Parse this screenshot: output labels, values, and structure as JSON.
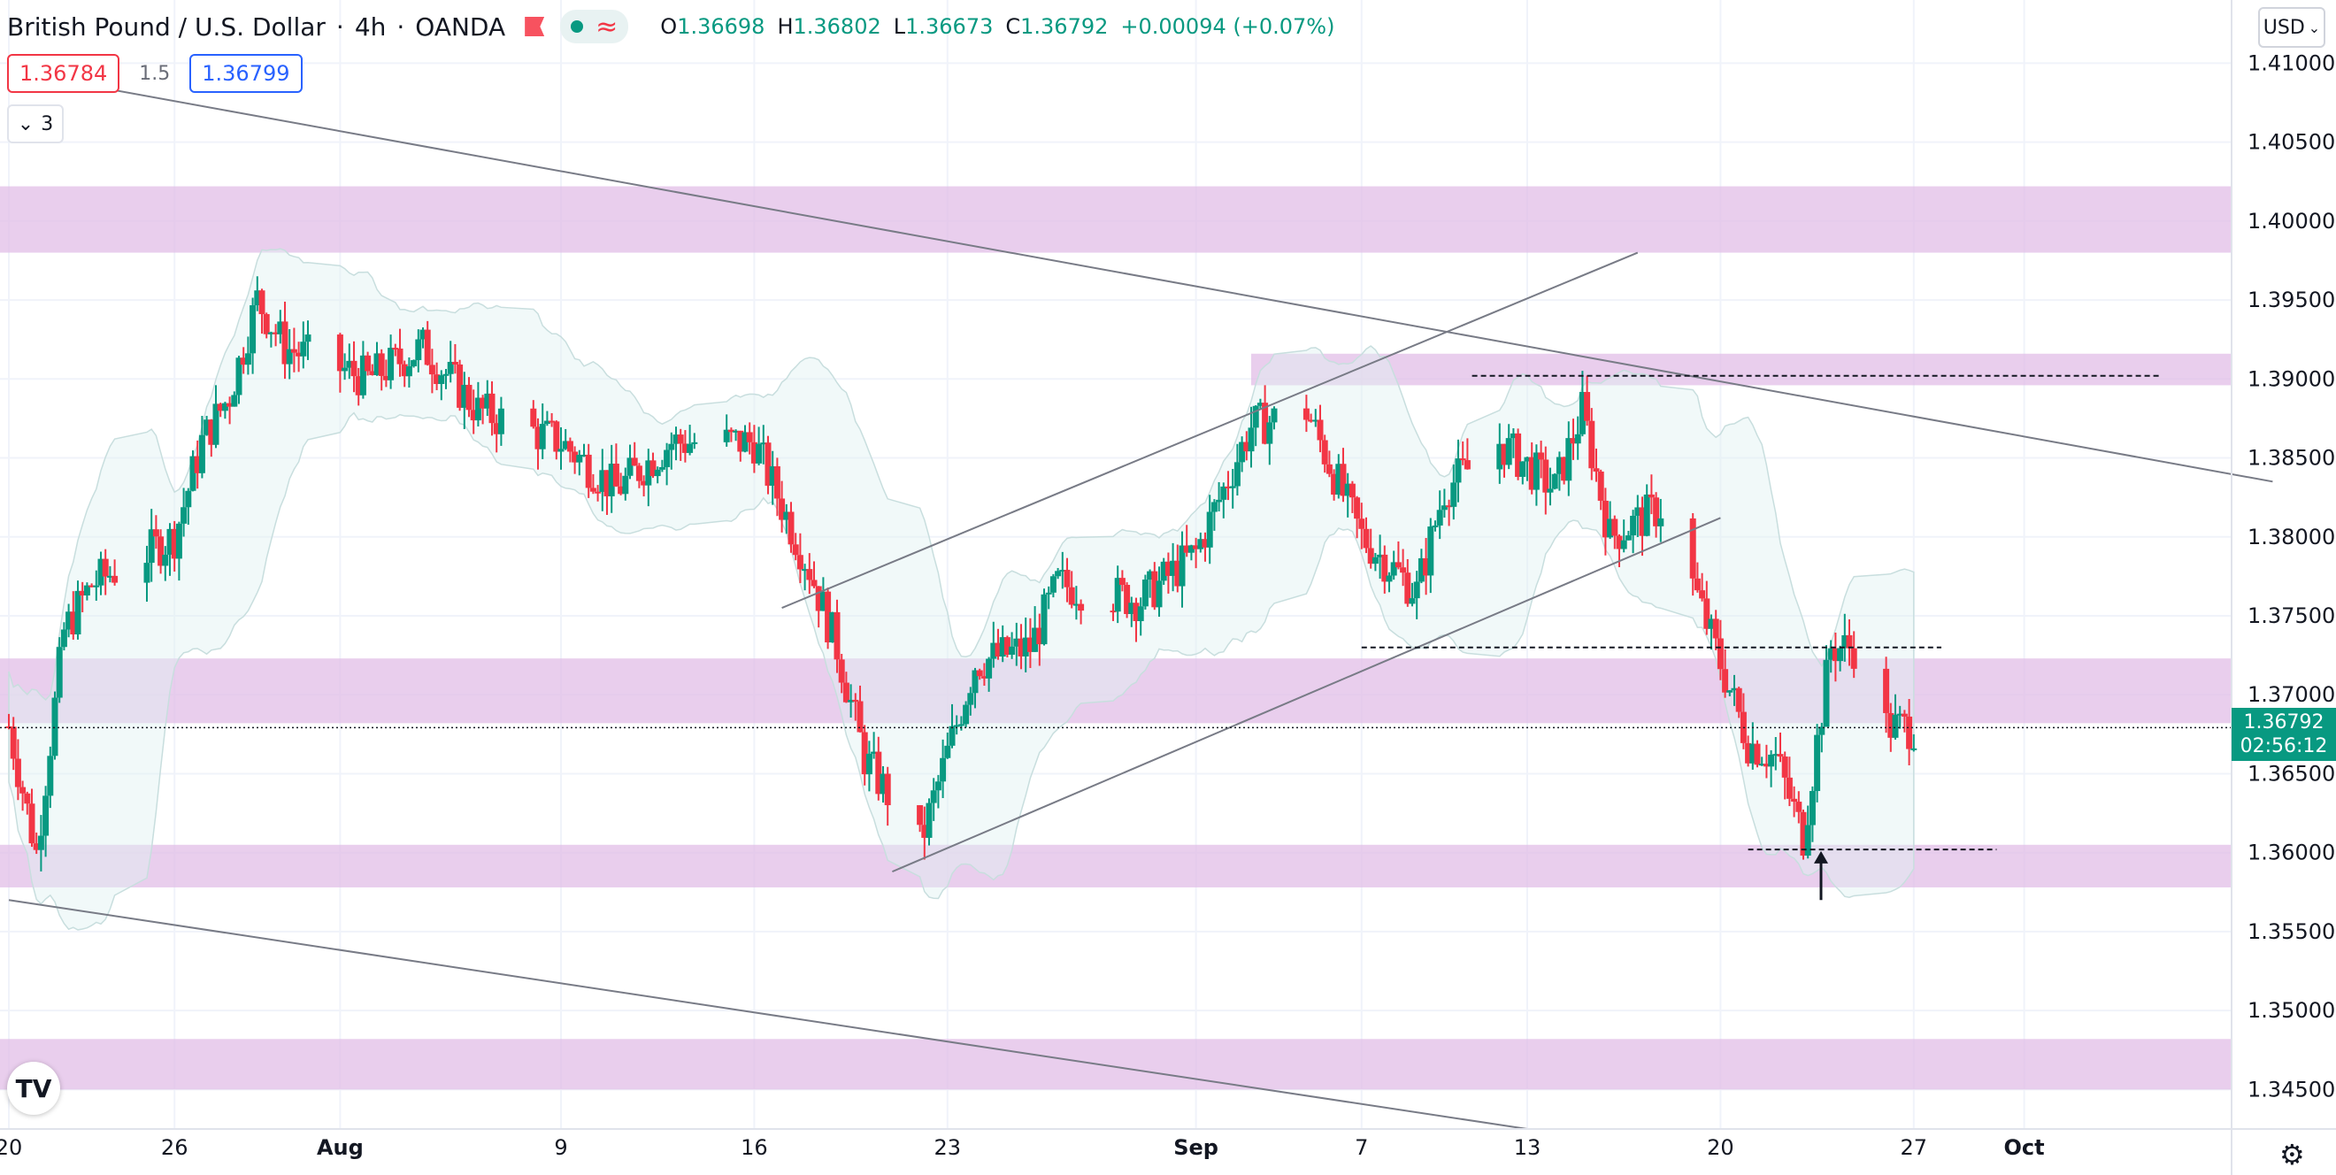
{
  "legend": {
    "symbol": "British Pound / U.S. Dollar",
    "interval": "4h",
    "exchange": "OANDA",
    "open_label": "O",
    "open": "1.36698",
    "high_label": "H",
    "high": "1.36802",
    "low_label": "L",
    "low": "1.36673",
    "close_label": "C",
    "close": "1.36792",
    "change": "+0.00094 (+0.07%)"
  },
  "trading": {
    "sell_price": "1.36784",
    "spread": "1.5",
    "buy_price": "1.36799"
  },
  "indicators_count": "3",
  "currency": "USD",
  "last_price": {
    "value": "1.36792",
    "countdown": "02:56:12"
  },
  "colors": {
    "up": "#089981",
    "down": "#f23645",
    "zone": "#e1bee7",
    "band": "#e0f2f1",
    "accent": "#2962ff"
  },
  "icons": {
    "logo": "tradingview-logo-icon",
    "settings": "gear-icon",
    "flag": "flag-icon"
  },
  "chart_data": {
    "type": "candlestick",
    "title": "British Pound / U.S. Dollar",
    "x_ticks": [
      "20",
      "26",
      "Aug",
      "9",
      "16",
      "23",
      "Sep",
      "7",
      "13",
      "20",
      "27",
      "Oct"
    ],
    "y_ticks": [
      "1.41000",
      "1.40500",
      "1.40000",
      "1.39500",
      "1.39000",
      "1.38500",
      "1.38000",
      "1.37500",
      "1.37000",
      "1.36500",
      "1.36000",
      "1.35500",
      "1.35000",
      "1.34500"
    ],
    "ylim": [
      1.3425,
      1.414
    ],
    "date_range": [
      "2021-07-20",
      "2021-10-03"
    ],
    "price_path": [
      [
        "2021-07-20",
        1.368
      ],
      [
        "2021-07-21",
        1.36
      ],
      [
        "2021-07-22",
        1.374
      ],
      [
        "2021-07-23",
        1.377
      ],
      [
        "2021-07-26",
        1.38
      ],
      [
        "2021-07-27",
        1.386
      ],
      [
        "2021-07-28",
        1.389
      ],
      [
        "2021-07-29",
        1.395
      ],
      [
        "2021-07-30",
        1.392
      ],
      [
        "2021-08-02",
        1.39
      ],
      [
        "2021-08-04",
        1.392
      ],
      [
        "2021-08-06",
        1.388
      ],
      [
        "2021-08-09",
        1.386
      ],
      [
        "2021-08-11",
        1.383
      ],
      [
        "2021-08-13",
        1.386
      ],
      [
        "2021-08-16",
        1.386
      ],
      [
        "2021-08-18",
        1.378
      ],
      [
        "2021-08-19",
        1.373
      ],
      [
        "2021-08-20",
        1.366
      ],
      [
        "2021-08-22",
        1.3605
      ],
      [
        "2021-08-24",
        1.372
      ],
      [
        "2021-08-26",
        1.373
      ],
      [
        "2021-08-27",
        1.377
      ],
      [
        "2021-08-30",
        1.376
      ],
      [
        "2021-09-01",
        1.379
      ],
      [
        "2021-09-03",
        1.387
      ],
      [
        "2021-09-05",
        1.388
      ],
      [
        "2021-09-07",
        1.38
      ],
      [
        "2021-09-09",
        1.3765
      ],
      [
        "2021-09-10",
        1.383
      ],
      [
        "2021-09-12",
        1.386
      ],
      [
        "2021-09-14",
        1.383
      ],
      [
        "2021-09-15",
        1.388
      ],
      [
        "2021-09-16",
        1.38
      ],
      [
        "2021-09-18",
        1.382
      ],
      [
        "2021-09-20",
        1.372
      ],
      [
        "2021-09-21",
        1.367
      ],
      [
        "2021-09-22",
        1.366
      ],
      [
        "2021-09-23",
        1.361
      ],
      [
        "2021-09-24",
        1.373
      ],
      [
        "2021-09-25",
        1.373
      ],
      [
        "2021-09-26",
        1.368
      ],
      [
        "2021-09-27",
        1.3679
      ]
    ],
    "zones": [
      {
        "from": 1.398,
        "to": 1.4022
      },
      {
        "from": 1.3896,
        "to": 1.3916,
        "start_date": "2021-09-03"
      },
      {
        "from": 1.3682,
        "to": 1.3723
      },
      {
        "from": 1.3578,
        "to": 1.3605
      },
      {
        "from": 1.345,
        "to": 1.3482
      }
    ],
    "levels": [
      {
        "price": 1.3902,
        "from_date": "2021-09-11",
        "to_date": "2021-10-06"
      },
      {
        "price": 1.373,
        "from_date": "2021-09-07",
        "to_date": "2021-09-28"
      },
      {
        "price": 1.3602,
        "from_date": "2021-09-21",
        "to_date": "2021-09-30"
      }
    ],
    "trendlines": [
      {
        "from": [
          "2021-07-20",
          1.4095
        ],
        "to": [
          "2021-10-10",
          1.3835
        ]
      },
      {
        "from": [
          "2021-07-20",
          1.357
        ],
        "to": [
          "2021-09-13",
          1.3425
        ]
      },
      {
        "from": [
          "2021-08-17",
          1.3755
        ],
        "to": [
          "2021-09-17",
          1.398
        ]
      },
      {
        "from": [
          "2021-08-21",
          1.3588
        ],
        "to": [
          "2021-09-20",
          1.3812
        ]
      }
    ],
    "last_price_line": 1.36792,
    "grid": true
  }
}
